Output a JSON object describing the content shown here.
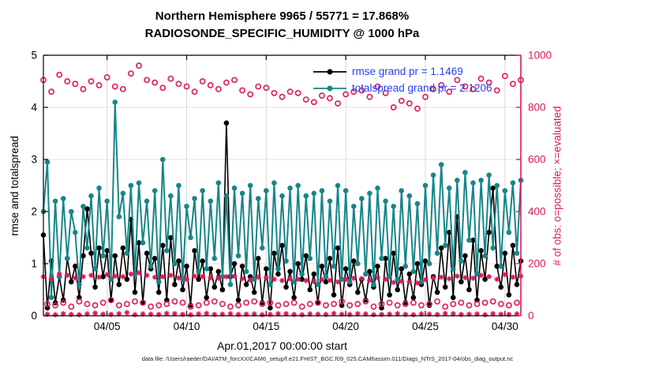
{
  "header": {
    "title": "Northern Hemisphere 9965 / 55771 = 17.868%",
    "subtitle": "RADIOSONDE_SPECIFIC_HUMIDITY @ 1000 hPa"
  },
  "footer": {
    "datafile_text": "data file: /Users/raeder/DAI/ATM_forcXX/CAM6_setup/f.e21.FHIST_BGC.f09_025.CAM6assim.011/Diags_NTrS_2017-04/obs_diag_output.nc"
  },
  "colors": {
    "pink_axis": "#df1858",
    "teal_series": "#17868a",
    "black_series": "#000000",
    "legend_text_blue": "#2640f0",
    "grid_horizontal": "#f7d8de",
    "grid_vertical": "#d8d8d8"
  },
  "chart_data": {
    "type": "line",
    "title": "Northern Hemisphere 9965 / 55771 = 17.868%",
    "subtitle": "RADIOSONDE_SPECIFIC_HUMIDITY @ 1000 hPa",
    "xlabel": "Apr.01,2017 00:00:00 start",
    "ylabel_left": "rmse and totalspread",
    "ylabel_right": "# of obs: o=possible; ×=evaluated",
    "ylim_left": [
      0,
      5
    ],
    "ylim_right": [
      0,
      1000
    ],
    "x_range_days": [
      0,
      30
    ],
    "x_step_days": 0.25,
    "x_tick_days": [
      4,
      9,
      14,
      19,
      24,
      29
    ],
    "x_tick_labels": [
      "04/05",
      "04/10",
      "04/15",
      "04/20",
      "04/25",
      "04/30"
    ],
    "y_ticks_left": [
      0,
      1,
      2,
      3,
      4,
      5
    ],
    "y_ticks_right": [
      0,
      200,
      400,
      600,
      800,
      1000
    ],
    "grid": true,
    "legend_position": "top-right-inside",
    "legend": [
      {
        "label": "rmse grand pr = 1.1469",
        "color": "#000000"
      },
      {
        "label": "totalspread grand pr = 2.1206",
        "color": "#17868a"
      }
    ],
    "series": [
      {
        "name": "rmse",
        "axis": "left",
        "color": "#000000",
        "marker": "dot",
        "line": true,
        "line_width": 1.6,
        "values": [
          1.55,
          0.15,
          1.05,
          0.25,
          0.75,
          0.3,
          1.1,
          0.65,
          0.95,
          0.35,
          1.15,
          2.05,
          1.2,
          0.55,
          1.3,
          0.75,
          1.25,
          0.3,
          1.15,
          0.6,
          1.3,
          0.7,
          1.85,
          0.45,
          1.4,
          0.25,
          1.2,
          0.9,
          1.1,
          0.45,
          1.35,
          0.3,
          1.5,
          0.6,
          1.05,
          0.5,
          0.95,
          0.2,
          1.25,
          0.7,
          1.05,
          0.35,
          0.9,
          0.55,
          0.85,
          0.5,
          3.7,
          0.75,
          1.0,
          0.3,
          0.95,
          0.6,
          0.75,
          0.45,
          1.1,
          0.25,
          0.9,
          0.15,
          1.2,
          0.8,
          1.35,
          0.55,
          0.85,
          0.35,
          1.0,
          0.7,
          1.15,
          0.5,
          0.8,
          0.25,
          0.95,
          0.65,
          1.1,
          0.4,
          1.3,
          0.2,
          0.9,
          0.6,
          1.05,
          0.45,
          0.7,
          0.3,
          0.85,
          0.55,
          0.95,
          0.15,
          1.1,
          0.4,
          1.2,
          0.5,
          0.9,
          0.25,
          0.8,
          0.35,
          1.0,
          0.6,
          1.05,
          0.2,
          0.75,
          0.45,
          1.3,
          0.55,
          1.6,
          0.35,
          1.9,
          0.65,
          1.15,
          0.5,
          1.45,
          0.3,
          1.25,
          0.7,
          1.6,
          2.45,
          0.95,
          0.55,
          1.2,
          0.4,
          1.35,
          0.6,
          1.05
        ]
      },
      {
        "name": "totalspread",
        "axis": "left",
        "color": "#17868a",
        "marker": "dot",
        "line": true,
        "line_width": 2,
        "values": [
          2.0,
          2.95,
          0.35,
          2.2,
          0.75,
          2.25,
          1.1,
          2.0,
          1.6,
          0.6,
          2.1,
          1.3,
          2.3,
          0.9,
          2.45,
          1.15,
          2.2,
          0.7,
          4.1,
          1.9,
          2.35,
          1.2,
          2.5,
          0.8,
          2.55,
          1.4,
          2.2,
          0.95,
          2.4,
          0.65,
          3.0,
          1.25,
          2.3,
          1.0,
          2.5,
          0.7,
          2.1,
          1.5,
          2.25,
          0.85,
          2.4,
          0.9,
          2.2,
          1.1,
          2.55,
          0.75,
          2.3,
          0.6,
          2.45,
          1.15,
          2.35,
          0.85,
          2.5,
          0.7,
          2.25,
          1.3,
          2.4,
          0.6,
          2.55,
          0.9,
          2.3,
          1.05,
          2.45,
          0.65,
          2.5,
          0.8,
          2.3,
          1.1,
          2.35,
          0.6,
          2.4,
          0.75,
          2.2,
          0.95,
          2.5,
          0.7,
          2.4,
          0.65,
          2.1,
          1.0,
          2.25,
          0.8,
          2.35,
          0.6,
          2.45,
          1.1,
          2.2,
          0.75,
          2.1,
          0.7,
          2.4,
          0.95,
          2.3,
          0.85,
          2.15,
          0.65,
          2.5,
          1.0,
          2.7,
          1.2,
          2.9,
          1.35,
          2.45,
          0.9,
          2.6,
          1.05,
          2.75,
          1.45,
          2.55,
          0.8,
          2.6,
          1.15,
          2.7,
          1.3,
          2.5,
          0.95,
          2.4,
          1.6,
          2.55,
          1.2,
          2.6
        ]
      },
      {
        "name": "possible-obs",
        "axis": "right",
        "color": "#df1858",
        "marker": "circle",
        "line": false,
        "values": [
          905,
          45,
          860,
          40,
          925,
          50,
          900,
          35,
          890,
          55,
          870,
          45,
          900,
          40,
          885,
          50,
          915,
          60,
          880,
          40,
          870,
          45,
          930,
          55,
          960,
          50,
          905,
          35,
          895,
          40,
          875,
          45,
          910,
          55,
          890,
          50,
          880,
          35,
          860,
          40,
          900,
          50,
          885,
          55,
          870,
          45,
          895,
          35,
          905,
          40,
          865,
          50,
          850,
          55,
          880,
          45,
          875,
          50,
          855,
          40,
          840,
          45,
          860,
          50,
          855,
          35,
          830,
          45,
          820,
          50,
          845,
          40,
          835,
          45,
          815,
          55,
          850,
          40,
          860,
          45,
          865,
          55,
          840,
          35,
          880,
          45,
          855,
          50,
          800,
          40,
          825,
          45,
          815,
          50,
          795,
          40,
          840,
          45,
          870,
          55,
          885,
          35,
          860,
          45,
          905,
          50,
          880,
          40,
          870,
          45,
          910,
          50,
          895,
          55,
          865,
          45,
          920,
          40,
          890,
          50,
          905
        ]
      },
      {
        "name": "evaluated-obs",
        "axis": "right",
        "color": "#df1858",
        "marker": "asterisk",
        "line": false,
        "values": [
          150,
          6,
          140,
          4,
          160,
          8,
          155,
          5,
          145,
          4,
          150,
          7,
          155,
          10,
          148,
          6,
          158,
          5,
          152,
          8,
          150,
          12,
          160,
          4,
          165,
          7,
          155,
          6,
          148,
          5,
          150,
          9,
          155,
          8,
          145,
          5,
          140,
          4,
          152,
          7,
          150,
          9,
          146,
          5,
          144,
          6,
          150,
          8,
          152,
          5,
          142,
          6,
          138,
          7,
          148,
          4,
          146,
          5,
          140,
          8,
          135,
          8,
          142,
          5,
          140,
          4,
          135,
          7,
          132,
          6,
          138,
          5,
          136,
          9,
          130,
          6,
          140,
          5,
          144,
          8,
          142,
          7,
          136,
          4,
          146,
          5,
          140,
          6,
          128,
          8,
          132,
          5,
          130,
          4,
          126,
          7,
          138,
          6,
          145,
          5,
          148,
          9,
          142,
          8,
          152,
          5,
          146,
          6,
          144,
          7,
          155,
          4,
          150,
          8,
          140,
          6,
          158,
          5,
          148,
          7,
          152
        ]
      }
    ]
  }
}
